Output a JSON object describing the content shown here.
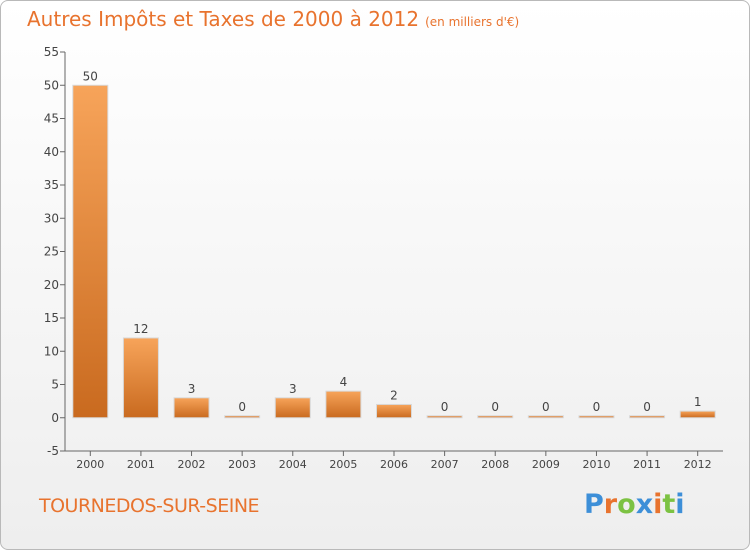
{
  "header": {
    "title": "Autres Impôts et Taxes de 2000 à 2012",
    "unit": "(en milliers d'€)"
  },
  "footer": {
    "commune": "TOURNEDOS-SUR-SEINE",
    "brand": "Proxiti",
    "brand_colors": [
      "#3d8fd8",
      "#e8732e",
      "#7cc242",
      "#3d8fd8",
      "#e8732e",
      "#7cc242",
      "#3d8fd8"
    ]
  },
  "chart_data": {
    "type": "bar",
    "title": "Autres Impôts et Taxes de 2000 à 2012",
    "subtitle": "(en milliers d'€)",
    "categories": [
      "2000",
      "2001",
      "2002",
      "2003",
      "2004",
      "2005",
      "2006",
      "2007",
      "2008",
      "2009",
      "2010",
      "2011",
      "2012"
    ],
    "values": [
      50,
      12,
      3,
      0,
      3,
      4,
      2,
      0,
      0,
      0,
      0,
      0,
      1
    ],
    "value_labels": [
      "50",
      "12",
      "3",
      "0",
      "3",
      "4",
      "2",
      "0",
      "0",
      "0",
      "0",
      "0",
      "1"
    ],
    "ylim": [
      -5,
      55
    ],
    "yticks": [
      -5,
      0,
      5,
      10,
      15,
      20,
      25,
      30,
      35,
      40,
      45,
      50,
      55
    ],
    "ytick_labels": [
      "-5",
      "0",
      "5",
      "10",
      "15",
      "20",
      "25",
      "30",
      "35",
      "40",
      "45",
      "50",
      "55"
    ],
    "grid": false,
    "legend": "none",
    "colors": {
      "bar_light": "#f7a45a",
      "bar_dark": "#c96a1f",
      "axis": "#666666",
      "label": "#444444"
    }
  }
}
